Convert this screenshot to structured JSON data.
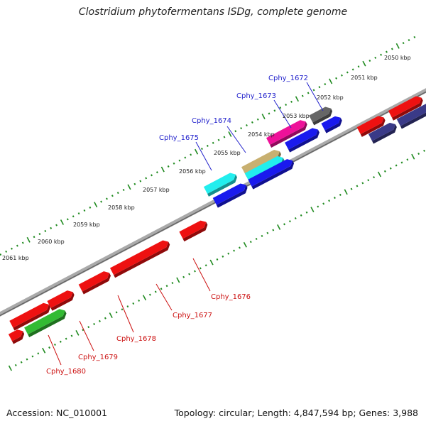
{
  "header": {
    "title": "Clostridium phytofermentans ISDg, complete genome"
  },
  "footer": {
    "accession": "Accession: NC_010001",
    "summary": "Topology: circular; Length: 4,847,594 bp; Genes: 3,988"
  },
  "colors": {
    "backbone": "#888888",
    "tick": "#1f8a1f",
    "label_top": "#2222cc",
    "label_bottom": "#cc1111",
    "red_gene": "#ee1111",
    "blue_gene": "#1a1aee",
    "cyan_gene": "#22eeee",
    "magenta_gene": "#ee1199",
    "tan_gene": "#c8b070",
    "grey_gene": "#666666",
    "green_gene": "#33bb33",
    "slate_gene": "#3a3a88"
  },
  "ruler": {
    "labels": [
      "2050 kbp",
      "2051 kbp",
      "2052 kbp",
      "2053 kbp",
      "2054 kbp",
      "2055 kbp",
      "2056 kbp",
      "2057 kbp",
      "2058 kbp",
      "2059 kbp",
      "2060 kbp",
      "2061 kbp"
    ]
  },
  "gene_labels_top": [
    "Cphy_1672",
    "Cphy_1673",
    "Cphy_1674",
    "Cphy_1675"
  ],
  "gene_labels_bottom": [
    "Cphy_1676",
    "Cphy_1677",
    "Cphy_1678",
    "Cphy_1679",
    "Cphy_1680"
  ]
}
